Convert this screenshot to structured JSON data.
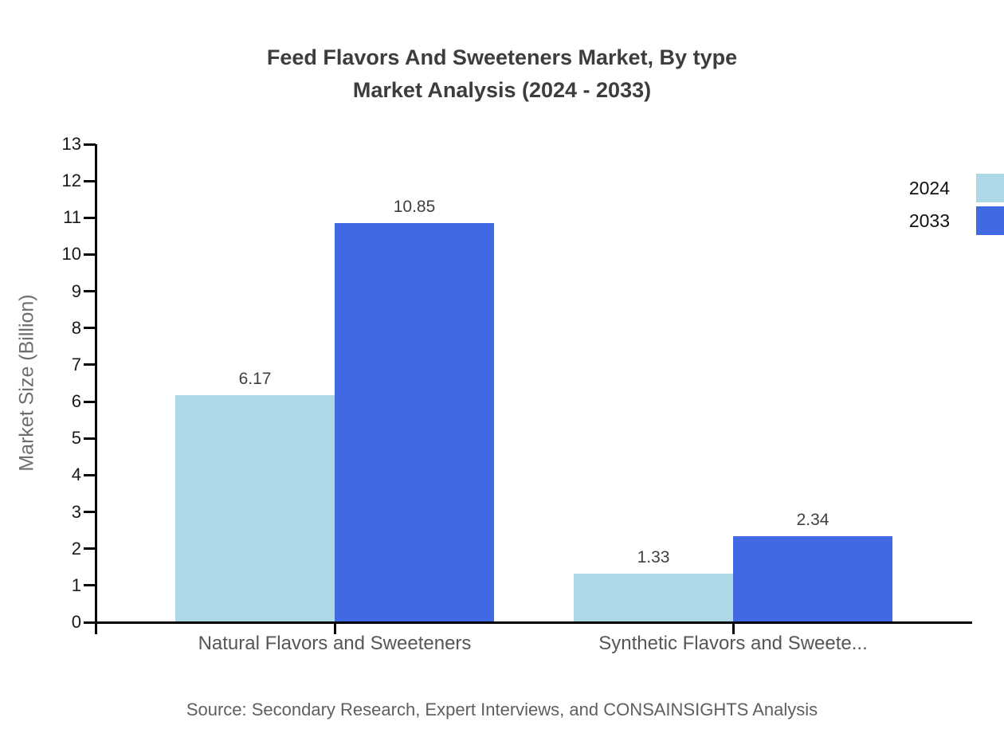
{
  "title": {
    "line1": "Feed Flavors And Sweeteners Market, By type",
    "line2": "Market Analysis (2024 - 2033)"
  },
  "chart_data": {
    "type": "bar",
    "title": "Feed Flavors And Sweeteners Market, By type Market Analysis (2024 - 2033)",
    "categories": [
      "Natural Flavors and Sweeteners",
      "Synthetic Flavors and Sweete..."
    ],
    "series": [
      {
        "name": "2024",
        "color": "#ADD8E6",
        "values": [
          6.17,
          1.33
        ]
      },
      {
        "name": "2033",
        "color": "#4169E1",
        "values": [
          10.85,
          2.34
        ]
      }
    ],
    "xlabel": "",
    "ylabel": "Market Size (Billion)",
    "ylim": [
      0,
      13
    ],
    "yticks": [
      0,
      1,
      2,
      3,
      4,
      5,
      6,
      7,
      8,
      9,
      10,
      11,
      12,
      13
    ],
    "grid": false,
    "legend_position": "top-right",
    "value_labels": true,
    "axis_color": "#000000"
  },
  "source_note": "Source: Secondary Research, Expert Interviews, and CONSAINSIGHTS Analysis"
}
